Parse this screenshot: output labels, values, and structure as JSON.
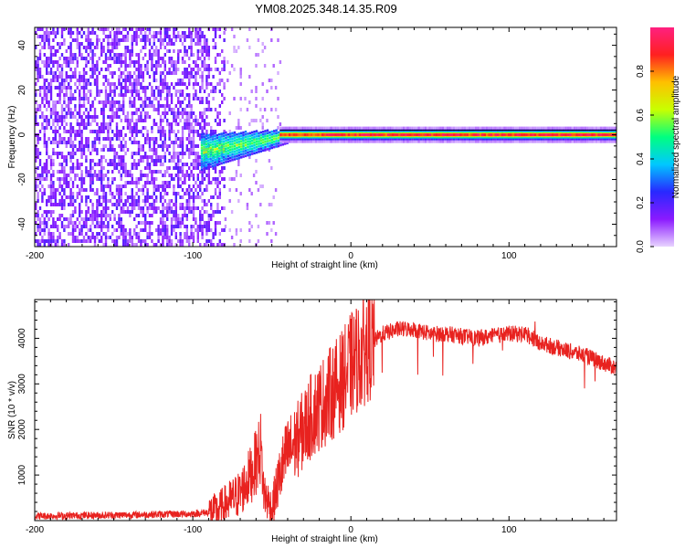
{
  "title": "YM08.2025.348.14.35.R09",
  "chart_data": [
    {
      "type": "heatmap",
      "xlabel": "Height of straight line (km)",
      "ylabel": "Frequency (Hz)",
      "xlim": [
        -200,
        168
      ],
      "ylim": [
        -50,
        48
      ],
      "x_ticks": [
        -200,
        -100,
        0,
        100
      ],
      "y_ticks": [
        -40,
        -20,
        0,
        20,
        40
      ],
      "colorbar": {
        "label": "Normalized spectral amplitude",
        "range": [
          0,
          1
        ],
        "ticks": [
          0.0,
          0.2,
          0.4,
          0.6,
          0.8
        ],
        "tick_labels": [
          "0.0",
          "0.2",
          "0.4",
          "0.6",
          "0.8"
        ],
        "colormap": [
          "#e8d4ff",
          "#8b1aff",
          "#2828ff",
          "#00c8ff",
          "#00ff80",
          "#c8ff00",
          "#ffc000",
          "#ff2020",
          "#ff2080"
        ]
      },
      "regions": [
        {
          "description_x": [
            -200,
            -80
          ],
          "freq_range": [
            -50,
            48
          ],
          "amplitude": 0.1
        },
        {
          "description_x": [
            -95,
            -45
          ],
          "freq_range": [
            -15,
            8
          ],
          "amplitude": 0.35
        },
        {
          "description_x": [
            -45,
            168
          ],
          "freq_range": [
            -2,
            2
          ],
          "amplitude": 0.9
        }
      ]
    },
    {
      "type": "line",
      "xlabel": "Height of straight line (km)",
      "ylabel": "SNR (10 * v/v)",
      "xlim": [
        -200,
        168
      ],
      "ylim": [
        0,
        4850
      ],
      "x_ticks": [
        -200,
        -100,
        0,
        100
      ],
      "y_ticks": [
        1000,
        2000,
        3000,
        4000
      ],
      "series": [
        {
          "color": "#e8221f",
          "x": [
            -200,
            -150,
            -100,
            -85,
            -70,
            -62,
            -57,
            -55,
            -50,
            -45,
            -40,
            -35,
            -30,
            -25,
            -20,
            -15,
            -10,
            -5,
            0,
            10,
            20,
            30,
            40,
            50,
            60,
            70,
            80,
            90,
            100,
            110,
            120,
            130,
            140,
            150,
            160,
            168
          ],
          "y": [
            100,
            120,
            150,
            200,
            600,
            1100,
            1600,
            600,
            250,
            1000,
            1500,
            1700,
            2000,
            2300,
            2500,
            2700,
            2900,
            3100,
            3400,
            3800,
            4100,
            4200,
            4200,
            4100,
            4100,
            4050,
            4000,
            4050,
            4100,
            4100,
            3900,
            3800,
            3700,
            3600,
            3450,
            3350
          ]
        }
      ]
    }
  ]
}
